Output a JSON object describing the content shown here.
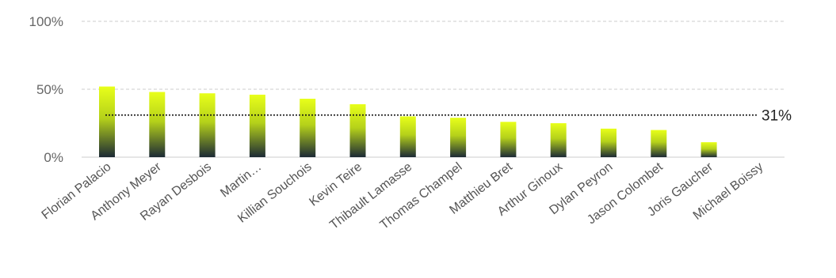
{
  "chart_data": {
    "type": "bar",
    "categories": [
      "Florian Palacio",
      "Anthony Meyer",
      "Rayan Desbois",
      "Martin…",
      "Killian Souchois",
      "Kevin Teire",
      "Thibault Lamasse",
      "Thomas Champel",
      "Matthieu Bret",
      "Arthur Ginoux",
      "Dylan Peyron",
      "Jason Colombet",
      "Joris Gaucher",
      "Michael Boissy"
    ],
    "values": [
      52,
      48,
      47,
      46,
      43,
      39,
      30,
      29,
      26,
      25,
      21,
      20,
      11,
      0
    ],
    "ylim": [
      0,
      100
    ],
    "yticks": [
      0,
      50,
      100
    ],
    "ytick_labels": [
      "0%",
      "50%",
      "100%"
    ],
    "reference_line": {
      "value": 31,
      "label": "31%",
      "style": "dotted"
    },
    "grid": true,
    "colors": {
      "bar_top": "#e8ff1a",
      "bar_mid": "#b5d11a",
      "bar_bottom": "#1c2a35",
      "grid": "#cccccc",
      "reference": "#111111"
    }
  }
}
